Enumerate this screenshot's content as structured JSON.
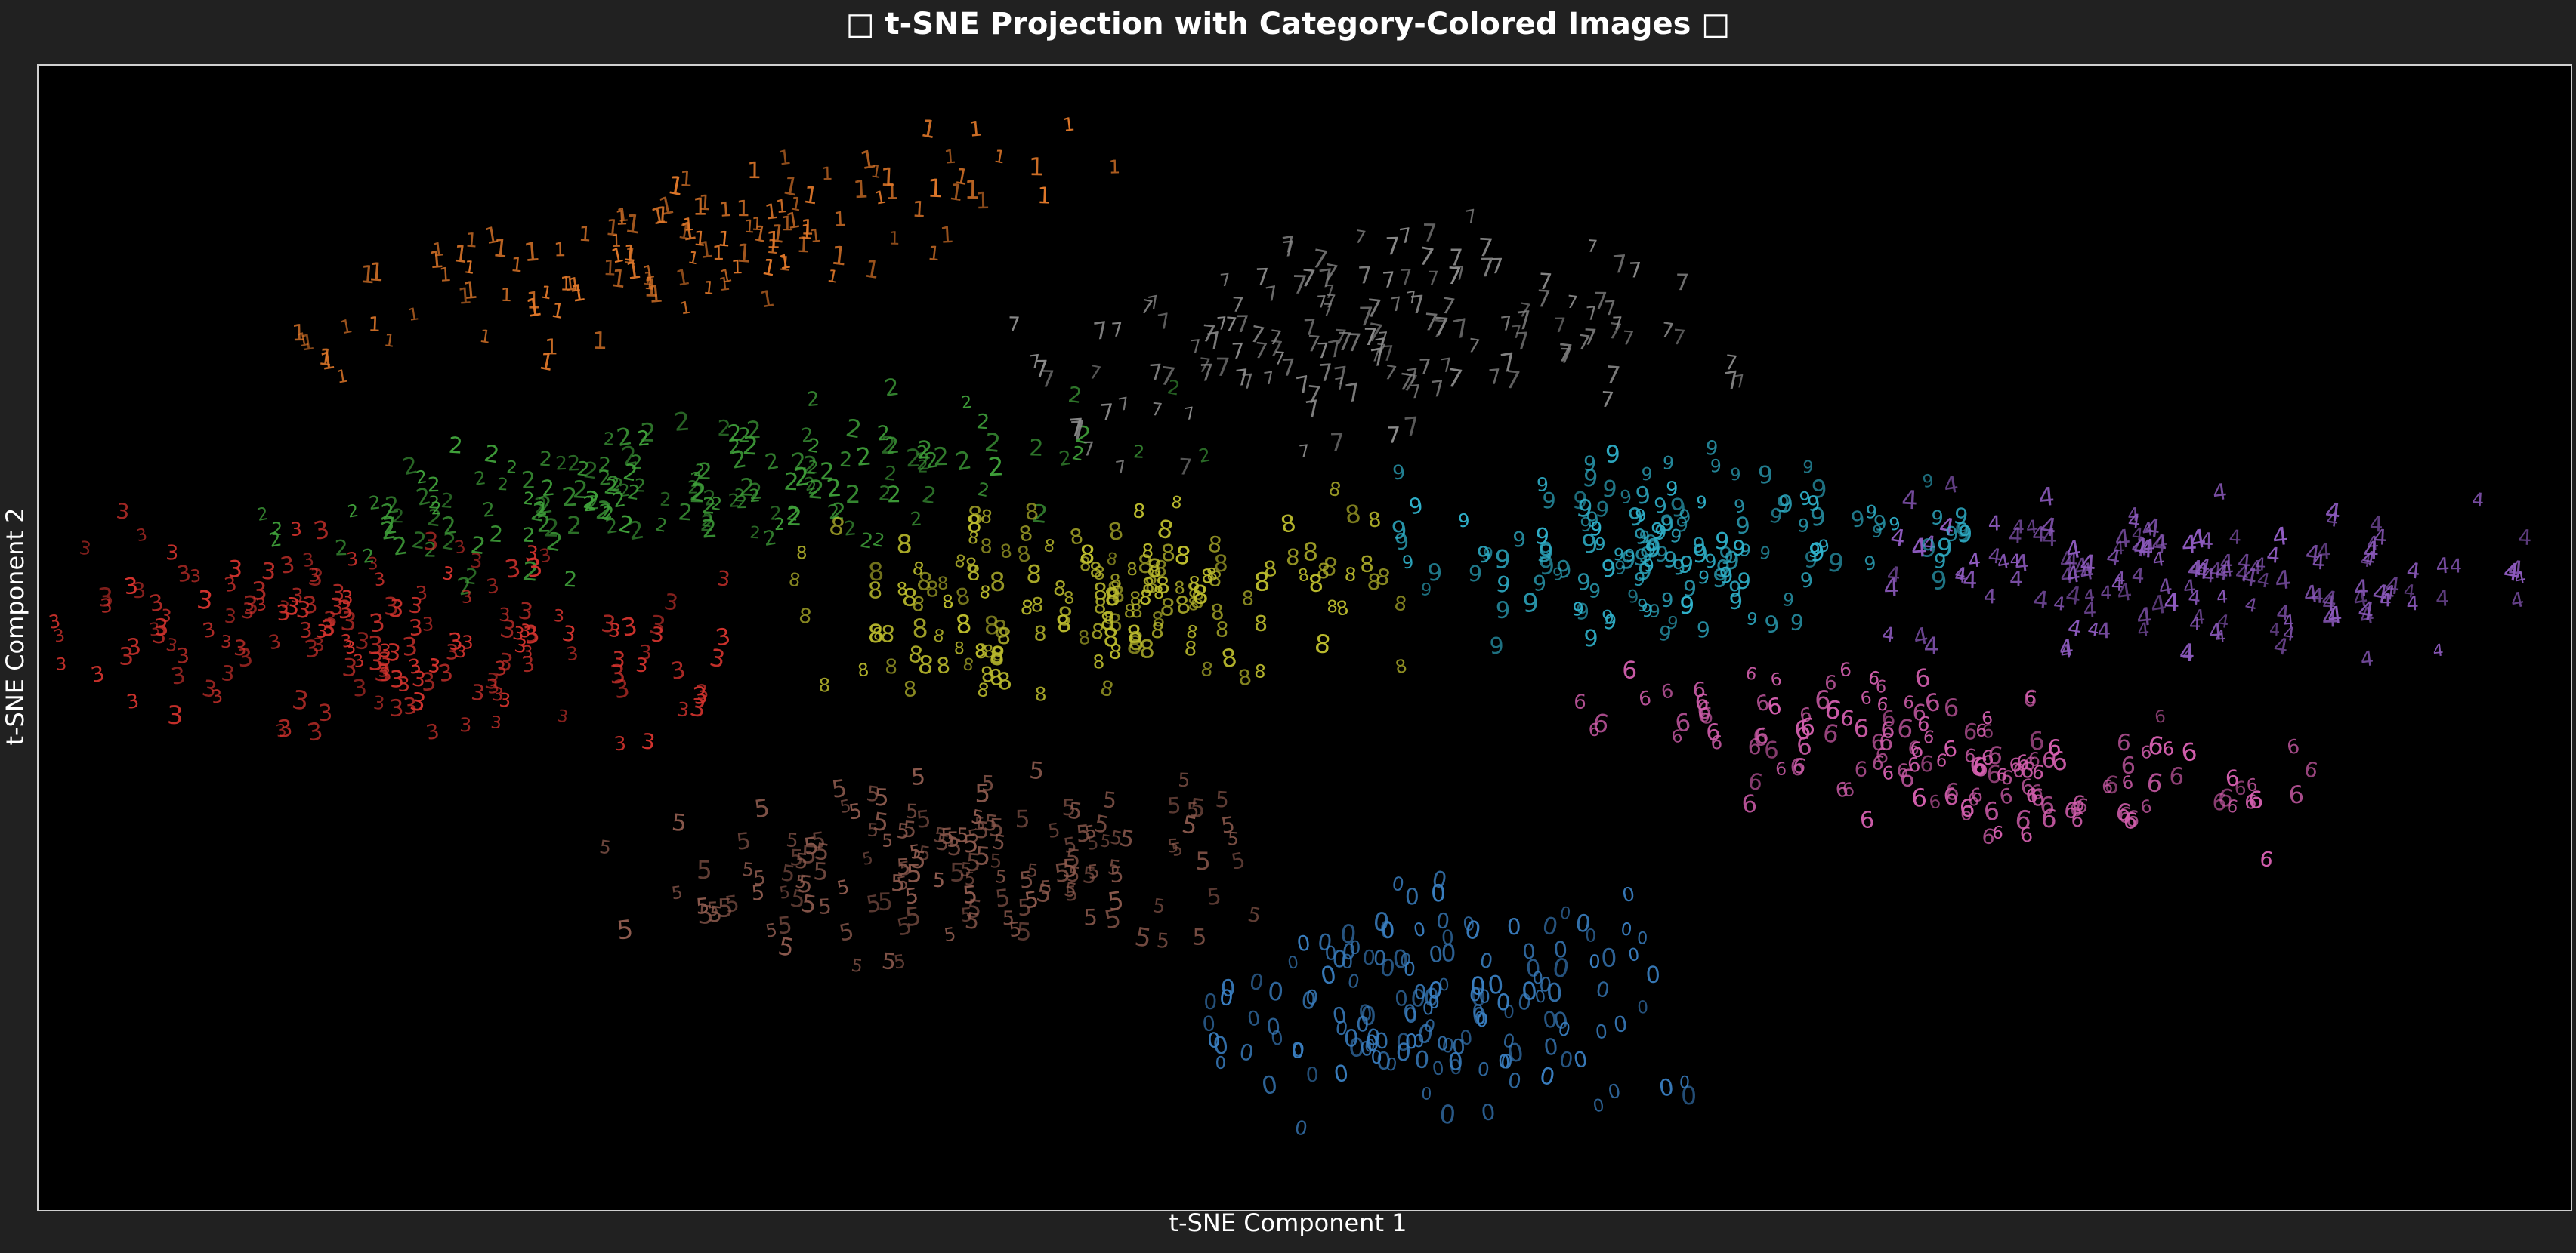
{
  "chart_data": {
    "type": "scatter",
    "title": "□ t-SNE Projection with Category-Colored Images □",
    "xlabel": "t-SNE Component 1",
    "ylabel": "t-SNE Component 2",
    "xlim": [
      -80,
      80
    ],
    "ylim": [
      -70,
      70
    ],
    "grid": false,
    "background_color": "#000000",
    "figure_color": "#212121",
    "marker": "handwritten digit image",
    "clusters": [
      {
        "label": "0",
        "color": "#3a7fc1",
        "center": [
          8,
          -45
        ],
        "spread": [
          13,
          13
        ],
        "tilt": 0.15,
        "count": 150
      },
      {
        "label": "1",
        "color": "#e0782a",
        "center": [
          -38,
          47
        ],
        "spread": [
          25,
          7
        ],
        "tilt": 0.5,
        "count": 130
      },
      {
        "label": "2",
        "color": "#3f9f3a",
        "center": [
          -36,
          18
        ],
        "spread": [
          27,
          8
        ],
        "tilt": 0.25,
        "count": 170
      },
      {
        "label": "3",
        "color": "#d2332e",
        "center": [
          -58,
          -1
        ],
        "spread": [
          19,
          11
        ],
        "tilt": -0.2,
        "count": 170
      },
      {
        "label": "4",
        "color": "#8e5bbf",
        "center": [
          57,
          7
        ],
        "spread": [
          18,
          9
        ],
        "tilt": -0.05,
        "count": 150
      },
      {
        "label": "5",
        "color": "#8c5a4e",
        "center": [
          -24,
          -29
        ],
        "spread": [
          18,
          10
        ],
        "tilt": 0.15,
        "count": 150
      },
      {
        "label": "6",
        "color": "#d35fae",
        "center": [
          39,
          -15
        ],
        "spread": [
          22,
          8
        ],
        "tilt": -0.25,
        "count": 150
      },
      {
        "label": "7",
        "color": "#8c8c8c",
        "center": [
          4,
          36
        ],
        "spread": [
          19,
          11
        ],
        "tilt": 0.3,
        "count": 150
      },
      {
        "label": "8",
        "color": "#bcbc2e",
        "center": [
          -13,
          4
        ],
        "spread": [
          17,
          10
        ],
        "tilt": 0.15,
        "count": 160
      },
      {
        "label": "9",
        "color": "#2fb0c9",
        "center": [
          24,
          11
        ],
        "spread": [
          16,
          10
        ],
        "tilt": 0.15,
        "count": 150
      }
    ]
  }
}
